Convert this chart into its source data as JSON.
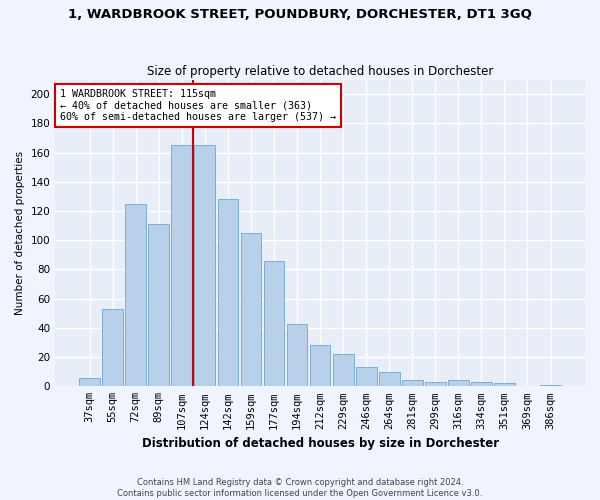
{
  "title": "1, WARDBROOK STREET, POUNDBURY, DORCHESTER, DT1 3GQ",
  "subtitle": "Size of property relative to detached houses in Dorchester",
  "xlabel": "Distribution of detached houses by size in Dorchester",
  "ylabel": "Number of detached properties",
  "bar_labels": [
    "37sqm",
    "55sqm",
    "72sqm",
    "89sqm",
    "107sqm",
    "124sqm",
    "142sqm",
    "159sqm",
    "177sqm",
    "194sqm",
    "212sqm",
    "229sqm",
    "246sqm",
    "264sqm",
    "281sqm",
    "299sqm",
    "316sqm",
    "334sqm",
    "351sqm",
    "369sqm",
    "386sqm"
  ],
  "bar_heights": [
    6,
    53,
    125,
    111,
    165,
    165,
    128,
    105,
    86,
    43,
    28,
    22,
    13,
    10,
    4,
    3,
    4,
    3,
    2,
    0,
    1
  ],
  "bar_color": "#b8d0ea",
  "bar_edge_color": "#6fa8d0",
  "background_color": "#e8eef8",
  "grid_color": "#ffffff",
  "vline_x_index": 4,
  "annotation_text": "1 WARDBROOK STREET: 115sqm\n← 40% of detached houses are smaller (363)\n60% of semi-detached houses are larger (537) →",
  "annotation_box_color": "#ffffff",
  "annotation_box_edge": "#cc0000",
  "vline_color": "#cc0000",
  "footer_line1": "Contains HM Land Registry data © Crown copyright and database right 2024.",
  "footer_line2": "Contains public sector information licensed under the Open Government Licence v3.0.",
  "ylim": [
    0,
    210
  ],
  "yticks": [
    0,
    20,
    40,
    60,
    80,
    100,
    120,
    140,
    160,
    180,
    200
  ],
  "fig_bg": "#f0f4ff",
  "title_fontsize": 9.5,
  "subtitle_fontsize": 8.5,
  "ylabel_fontsize": 7.5,
  "xlabel_fontsize": 8.5,
  "tick_fontsize": 7.5,
  "footer_fontsize": 6.0
}
